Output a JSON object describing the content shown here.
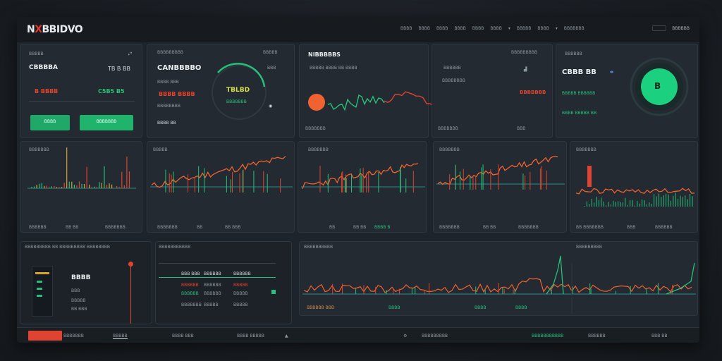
{
  "app": {
    "logo_prefix": "N",
    "logo_x": "X",
    "logo_suffix": "BBIDVO",
    "nav": [
      "BBBB",
      "BBBB",
      "BBBB",
      "BBBB",
      "BBBB",
      "BBBB",
      "▾",
      "BBBBB",
      "BBBB",
      "▾",
      "BBBBBBB"
    ],
    "account_label": "BBBBBB"
  },
  "cards": {
    "account": {
      "title": "BBBBB",
      "name": "CBBBBA",
      "value_a": "B BBBB",
      "value_b": "C5B5 B5",
      "badge": "TB B BB",
      "buy_label": "BBBB",
      "sell_label": "BBBBBBB"
    },
    "portfolio": {
      "title": "BBBBBBBBB",
      "heading": "CANBBBBO",
      "line1": "BBBB BBB",
      "line2": "BBBB BBBB",
      "chip": "TBLBD",
      "sub": "BBBBBBBB",
      "corner": "BBB",
      "foot": "BBBB BB"
    },
    "market": {
      "title": "NIBBBBBS",
      "tickers": "BBBBB BBBB BB BBBB",
      "foot": "BBBBBBB"
    },
    "watch": {
      "title": "BBBBBBBBB",
      "line": "BBBBBB",
      "chip": "BBBBBBB",
      "foot": "BBBBBBB",
      "foot2": "BBB"
    },
    "balance": {
      "title": "BBBBBB",
      "value": "CBBB BB",
      "line1": "BBBBB BBBBBB",
      "line2": "BBBB BBBBB BB",
      "coin": "B"
    }
  },
  "charts_row": [
    {
      "title": "BBBBBBB",
      "foot_l": "BBBBBB",
      "foot_m": "BB BB",
      "foot_r": "BBBBBBB"
    },
    {
      "title": "BBBBB",
      "foot_l": "BBBBBBB",
      "foot_m": "BB",
      "foot_r": "BB BBB"
    },
    {
      "title": "BBBBBBB",
      "foot_l": "BB",
      "foot_m": "BB BB",
      "foot_r": "BBBB B"
    },
    {
      "title": "BBBBBBB",
      "foot_l": "BBBBBBB",
      "foot_m": "BB BB",
      "foot_r": "BBBBBBB"
    },
    {
      "title": "BBBBBBB",
      "foot_l": "BB BBBBBBB",
      "foot_m": "BBB",
      "foot_r": "BBBBBB"
    }
  ],
  "orders": {
    "title": "BBBBBBBBB BB BBBBBBBBB BBBBBBBB",
    "price": "BBBB",
    "rows": [
      "BBB",
      "BBBBB",
      "BBBBBB"
    ],
    "foot": "BB BBB"
  },
  "depth": {
    "title": "BBBBBBBBBBB",
    "rows": [
      [
        "BBB BBB",
        "BBBBBB",
        "BBBBBB"
      ],
      [
        "BBBBBB",
        "BBBBBB",
        "BBBBB"
      ],
      [
        "BBBBBB",
        "BBBBBB",
        "BBBBB"
      ],
      [
        "BBBBBBB",
        "BBBBB",
        "BBBBB"
      ]
    ]
  },
  "history": {
    "title": "BBBBBBBBBB",
    "title2": "BBBBBBBBB",
    "foot": [
      "BBBBBB BBB",
      "BBBB",
      "BBBB",
      "BBBB"
    ]
  },
  "bottom": [
    "BBBBBBB",
    "BBBBB",
    "BBBB BBB",
    "BBBB BBBBB",
    "BBBBBBBBBBB",
    "BBBBBBBBB",
    "BBBBBBBBBBB",
    "BBBBBB",
    "BBB BB"
  ],
  "bottom_active": "BBBBBBB",
  "colors": {
    "accent_green": "#27c07a",
    "accent_red": "#e0432f",
    "orange": "#f0622f",
    "bg": "#1e242b"
  }
}
